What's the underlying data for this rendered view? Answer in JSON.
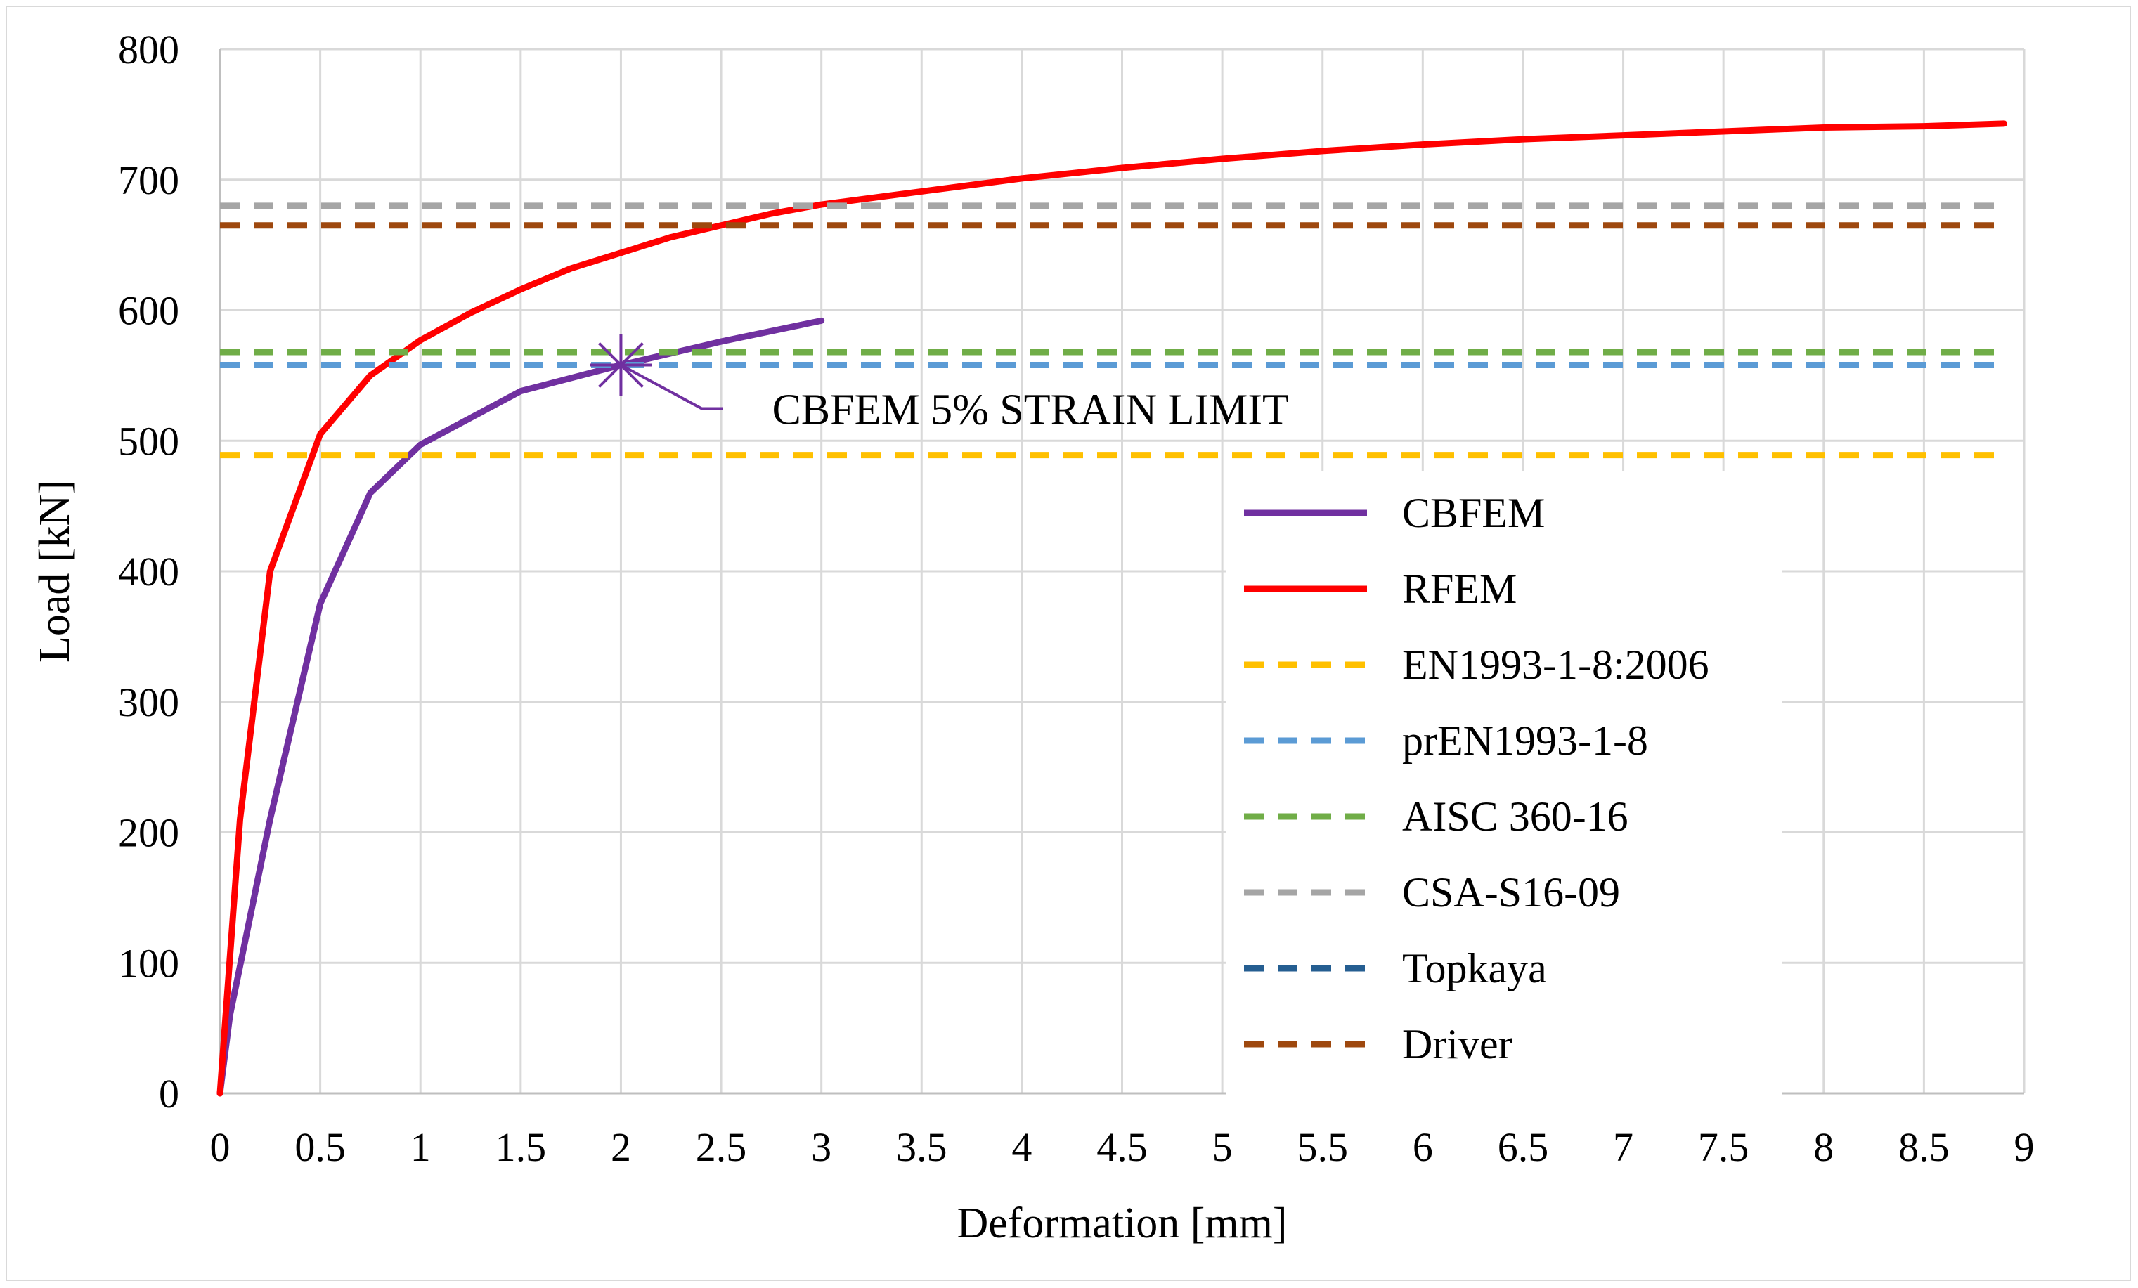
{
  "chart_data": {
    "type": "line",
    "title": "",
    "xlabel": "Deformation [mm]",
    "ylabel": "Load [kN]",
    "xlim": [
      0,
      9
    ],
    "ylim": [
      0,
      800
    ],
    "x_ticks": [
      "0",
      "0.5",
      "1",
      "1.5",
      "2",
      "2.5",
      "3",
      "3.5",
      "4",
      "4.5",
      "5",
      "5.5",
      "6",
      "6.5",
      "7",
      "7.5",
      "8",
      "8.5",
      "9"
    ],
    "y_ticks": [
      "0",
      "100",
      "200",
      "300",
      "400",
      "500",
      "600",
      "700",
      "800"
    ],
    "grid": true,
    "legend_position": "right",
    "series": [
      {
        "name": "CBFEM",
        "style": "solid",
        "color": "#7030a0",
        "points": [
          [
            0,
            0
          ],
          [
            0.05,
            60
          ],
          [
            0.25,
            210
          ],
          [
            0.5,
            375
          ],
          [
            0.75,
            460
          ],
          [
            1.0,
            497
          ],
          [
            1.5,
            538
          ],
          [
            2.0,
            558
          ],
          [
            2.5,
            576
          ],
          [
            3.0,
            592
          ]
        ]
      },
      {
        "name": "RFEM",
        "style": "solid",
        "color": "#ff0000",
        "points": [
          [
            0,
            0
          ],
          [
            0.1,
            210
          ],
          [
            0.25,
            400
          ],
          [
            0.5,
            505
          ],
          [
            0.75,
            550
          ],
          [
            1.0,
            577
          ],
          [
            1.25,
            598
          ],
          [
            1.5,
            616
          ],
          [
            1.75,
            632
          ],
          [
            2.0,
            644
          ],
          [
            2.25,
            656
          ],
          [
            2.5,
            665
          ],
          [
            2.75,
            674
          ],
          [
            3.0,
            681
          ],
          [
            3.5,
            691
          ],
          [
            4.0,
            701
          ],
          [
            4.5,
            709
          ],
          [
            5.0,
            716
          ],
          [
            5.5,
            722
          ],
          [
            6.0,
            727
          ],
          [
            6.5,
            731
          ],
          [
            7.0,
            734
          ],
          [
            7.5,
            737
          ],
          [
            8.0,
            740
          ],
          [
            8.5,
            741
          ],
          [
            8.9,
            743
          ]
        ]
      },
      {
        "name": "EN1993-1-8:2006",
        "style": "dashed",
        "color": "#ffc000",
        "constant": 489,
        "x_range": [
          0,
          8.9
        ]
      },
      {
        "name": "prEN1993-1-8",
        "style": "dashed",
        "color": "#5b9bd5",
        "constant": 558,
        "x_range": [
          0,
          8.9
        ]
      },
      {
        "name": "AISC 360-16",
        "style": "dashed",
        "color": "#70ad47",
        "constant": 568,
        "x_range": [
          0,
          8.9
        ]
      },
      {
        "name": "CSA-S16-09",
        "style": "dashed",
        "color": "#a5a5a5",
        "constant": 680,
        "x_range": [
          0,
          8.9
        ]
      },
      {
        "name": "Topkaya",
        "style": "dashed",
        "color": "#255e91",
        "constant": null,
        "x_range": [
          0,
          8.9
        ]
      },
      {
        "name": "Driver",
        "style": "dashed",
        "color": "#9e480e",
        "constant": 665,
        "x_range": [
          0,
          8.9
        ]
      }
    ],
    "annotations": [
      {
        "text": "CBFEM 5% STRAIN LIMIT",
        "x": 2.0,
        "y": 558,
        "marker": "star",
        "color": "#7030a0"
      }
    ]
  }
}
